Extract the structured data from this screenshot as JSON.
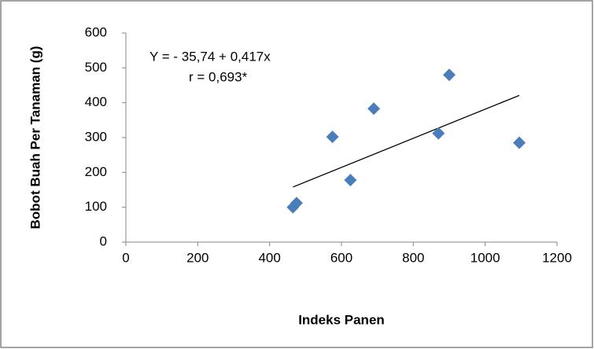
{
  "chart_data": {
    "type": "scatter",
    "x_label": "Indeks Panen",
    "y_label": "Bobot Buah Per Tanaman (g)",
    "annotations": [
      "Y = - 35,74 + 0,417x",
      "r = 0,693*"
    ],
    "series": [
      {
        "color": "#4a7ebb",
        "x": [
          465,
          475,
          575,
          625,
          690,
          870,
          900,
          1095
        ],
        "values": [
          100,
          112,
          302,
          178,
          383,
          312,
          480,
          285
        ]
      }
    ],
    "trendline": {
      "color": "#000000",
      "x": [
        465,
        1095
      ],
      "values": [
        158,
        421
      ]
    },
    "xlim": [
      0,
      1200
    ],
    "xticks": [
      0,
      200,
      400,
      600,
      800,
      1000,
      1200
    ],
    "ylim": [
      0,
      600
    ],
    "yticks": [
      0,
      100,
      200,
      300,
      400,
      500,
      600
    ],
    "grid": false
  }
}
